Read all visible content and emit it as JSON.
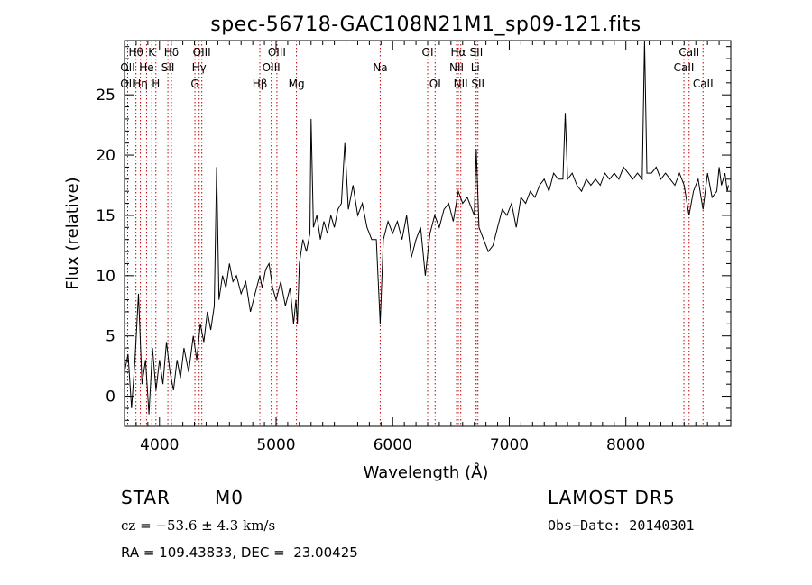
{
  "chart_data": {
    "type": "line",
    "title": "spec-56718-GAC108N21M1_sp09-121.fits",
    "xlabel": "Wavelength (Å)",
    "ylabel": "Flux (relative)",
    "xlim": [
      3700,
      8900
    ],
    "ylim": [
      -2.5,
      29.5
    ],
    "xticks": [
      4000,
      5000,
      6000,
      7000,
      8000
    ],
    "yticks": [
      0,
      5,
      10,
      15,
      20,
      25
    ],
    "grid": false,
    "line_color": "#000000",
    "marker_color": "#c00000",
    "series": [
      {
        "x": [
          3700,
          3730,
          3760,
          3790,
          3820,
          3850,
          3880,
          3910,
          3940,
          3970,
          4000,
          4030,
          4060,
          4090,
          4120,
          4150,
          4180,
          4210,
          4250,
          4290,
          4320,
          4350,
          4380,
          4410,
          4440,
          4470,
          4490,
          4510,
          4540,
          4570,
          4600,
          4630,
          4660,
          4700,
          4740,
          4780,
          4820,
          4861,
          4880,
          4910,
          4940,
          4970,
          5000,
          5040,
          5080,
          5120,
          5150,
          5170,
          5183,
          5200,
          5230,
          5260,
          5290,
          5300,
          5320,
          5350,
          5380,
          5410,
          5440,
          5470,
          5500,
          5530,
          5560,
          5590,
          5620,
          5660,
          5700,
          5740,
          5780,
          5820,
          5860,
          5893,
          5920,
          5960,
          6000,
          6040,
          6080,
          6120,
          6160,
          6200,
          6240,
          6280,
          6320,
          6360,
          6400,
          6440,
          6480,
          6520,
          6562,
          6600,
          6640,
          6680,
          6700,
          6717,
          6740,
          6780,
          6820,
          6860,
          6900,
          6940,
          6980,
          7020,
          7060,
          7100,
          7140,
          7180,
          7220,
          7260,
          7300,
          7340,
          7380,
          7420,
          7460,
          7480,
          7500,
          7540,
          7580,
          7620,
          7660,
          7700,
          7740,
          7780,
          7820,
          7860,
          7900,
          7940,
          7980,
          8020,
          8060,
          8100,
          8140,
          8160,
          8180,
          8220,
          8260,
          8300,
          8340,
          8380,
          8420,
          8460,
          8500,
          8542,
          8580,
          8620,
          8662,
          8700,
          8740,
          8780,
          8800,
          8820,
          8850,
          8870,
          8880
        ],
        "y": [
          2.0,
          3.5,
          -1.0,
          3.0,
          8.5,
          1.0,
          3.0,
          -1.5,
          4.0,
          0.5,
          3.0,
          1.0,
          4.5,
          2.0,
          0.5,
          3.0,
          1.5,
          4.0,
          2.0,
          5.0,
          3.0,
          6.0,
          4.5,
          7.0,
          5.5,
          7.5,
          19.0,
          8.0,
          10.0,
          9.0,
          11.0,
          9.5,
          10.0,
          8.5,
          9.5,
          7.0,
          8.5,
          10.0,
          9.0,
          10.5,
          11.0,
          9.0,
          8.0,
          9.5,
          7.5,
          9.0,
          6.0,
          8.0,
          6.0,
          11.0,
          13.0,
          12.0,
          13.5,
          23.0,
          14.0,
          15.0,
          13.0,
          14.5,
          13.5,
          15.0,
          14.0,
          15.5,
          16.0,
          21.0,
          15.5,
          17.5,
          15.0,
          16.0,
          14.0,
          13.0,
          13.0,
          6.0,
          13.0,
          14.5,
          13.5,
          14.5,
          13.0,
          15.0,
          11.5,
          13.0,
          14.0,
          10.0,
          13.5,
          15.0,
          14.0,
          15.5,
          16.0,
          14.5,
          17.0,
          16.0,
          16.5,
          15.5,
          15.0,
          20.5,
          14.0,
          13.0,
          12.0,
          12.5,
          14.0,
          15.5,
          15.0,
          16.0,
          14.0,
          16.5,
          16.0,
          17.0,
          16.5,
          17.5,
          18.0,
          17.0,
          18.5,
          18.0,
          18.0,
          23.5,
          18.0,
          18.5,
          17.5,
          17.0,
          18.0,
          17.5,
          18.0,
          17.5,
          18.5,
          18.0,
          18.5,
          18.0,
          19.0,
          18.5,
          18.0,
          18.5,
          18.0,
          29.5,
          18.5,
          18.5,
          19.0,
          18.0,
          18.5,
          18.0,
          17.5,
          18.5,
          17.5,
          15.0,
          17.0,
          18.0,
          15.5,
          18.5,
          16.5,
          17.0,
          19.0,
          17.5,
          18.5,
          17.0,
          17.5
        ]
      }
    ],
    "spectral_lines": [
      {
        "label": "Hθ",
        "x": 3798,
        "row": 0
      },
      {
        "label": "OII",
        "x": 3727,
        "row": 1
      },
      {
        "label": "OII",
        "x": 3727,
        "row": 2
      },
      {
        "label": "Hη",
        "x": 3836,
        "row": 2
      },
      {
        "label": "He",
        "x": 3889,
        "row": 1
      },
      {
        "label": "K",
        "x": 3934,
        "row": 0
      },
      {
        "label": "H",
        "x": 3969,
        "row": 2
      },
      {
        "label": "Hδ",
        "x": 4102,
        "row": 0
      },
      {
        "label": "SII",
        "x": 4072,
        "row": 1
      },
      {
        "label": "OIII",
        "x": 4363,
        "row": 0
      },
      {
        "label": "Hγ",
        "x": 4340,
        "row": 1
      },
      {
        "label": "G",
        "x": 4304,
        "row": 2
      },
      {
        "label": "Hβ",
        "x": 4861,
        "row": 2
      },
      {
        "label": "OIII",
        "x": 4959,
        "row": 1
      },
      {
        "label": "OIII",
        "x": 5007,
        "row": 0
      },
      {
        "label": "Mg",
        "x": 5175,
        "row": 2
      },
      {
        "label": "Na",
        "x": 5893,
        "row": 1
      },
      {
        "label": "OI",
        "x": 6300,
        "row": 0
      },
      {
        "label": "OI",
        "x": 6364,
        "row": 2
      },
      {
        "label": "Hα",
        "x": 6563,
        "row": 0
      },
      {
        "label": "NII",
        "x": 6548,
        "row": 1
      },
      {
        "label": "NII",
        "x": 6584,
        "row": 2
      },
      {
        "label": "SII",
        "x": 6717,
        "row": 0
      },
      {
        "label": "Li",
        "x": 6708,
        "row": 1
      },
      {
        "label": "SII",
        "x": 6731,
        "row": 2
      },
      {
        "label": "CaII",
        "x": 8542,
        "row": 0
      },
      {
        "label": "CaII",
        "x": 8498,
        "row": 1
      },
      {
        "label": "CaII",
        "x": 8662,
        "row": 2
      }
    ]
  },
  "info": {
    "class": "STAR",
    "subclass": "M0",
    "survey": "LAMOST DR5",
    "cz": "cz = −53.6 ± 4.3 km/s",
    "obs_date": "Obs−Date: 20140301",
    "coords": "RA = 109.43833, DEC =  23.00425"
  }
}
